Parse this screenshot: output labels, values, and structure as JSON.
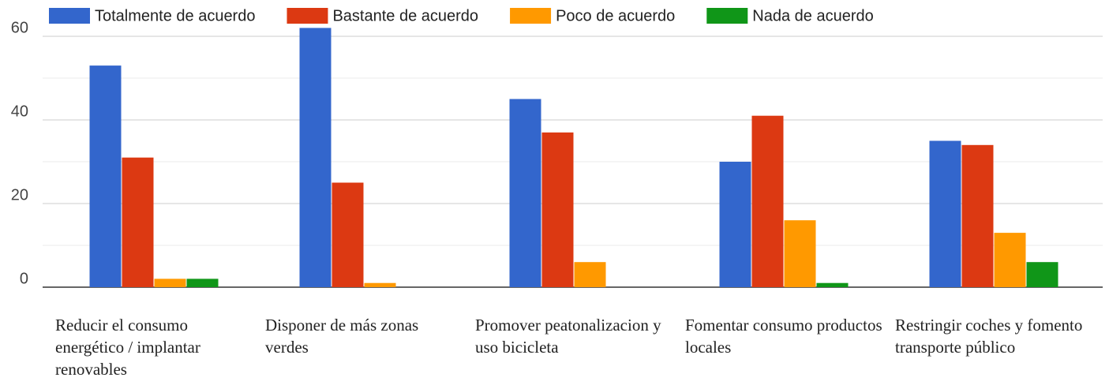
{
  "chart_data": {
    "type": "bar",
    "categories": [
      "Reducir el consumo energético / implantar renovables",
      "Disponer de más zonas verdes",
      "Promover peatonalizacion y uso bicicleta",
      "Fomentar consumo productos locales",
      "Restringir coches y fomento transporte público"
    ],
    "series": [
      {
        "name": "Totalmente de acuerdo",
        "color": "#3366cc",
        "values": [
          53,
          62,
          45,
          30,
          35
        ]
      },
      {
        "name": "Bastante de acuerdo",
        "color": "#dc3912",
        "values": [
          31,
          25,
          37,
          41,
          34
        ]
      },
      {
        "name": "Poco de acuerdo",
        "color": "#ff9900",
        "values": [
          2,
          1,
          6,
          16,
          13
        ]
      },
      {
        "name": "Nada de acuerdo",
        "color": "#109618",
        "values": [
          2,
          0,
          0,
          1,
          6
        ]
      }
    ],
    "ylim": [
      0,
      60
    ],
    "yticks": [
      0,
      20,
      40,
      60
    ],
    "minor_yticks": [
      10,
      30,
      50
    ],
    "grid": true,
    "legend": "top"
  }
}
